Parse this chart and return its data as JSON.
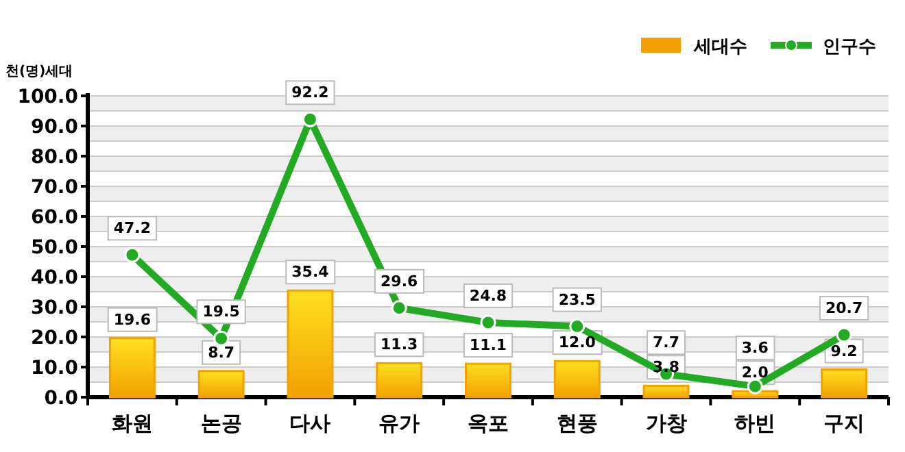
{
  "chart_data": {
    "type": "bar",
    "ylabel": "천(명)세대",
    "categories": [
      "화원",
      "논공",
      "다사",
      "유가",
      "옥포",
      "현풍",
      "가창",
      "하빈",
      "구지"
    ],
    "series": [
      {
        "name": "세대수",
        "color": "#f2a100",
        "values": [
          19.6,
          8.7,
          35.4,
          11.3,
          11.1,
          12.0,
          3.8,
          2.0,
          9.2
        ],
        "value_labels": [
          "19.6",
          "8.7",
          "35.4",
          "11.3",
          "11.1",
          "12.0",
          "3.8",
          "2.0",
          "9.2"
        ]
      },
      {
        "name": "인구수",
        "type": "line",
        "color": "#22aa22",
        "marker": "circle",
        "values": [
          47.2,
          19.5,
          92.2,
          29.6,
          24.8,
          23.5,
          7.7,
          3.6,
          20.7
        ],
        "value_labels": [
          "47.2",
          "19.5",
          "92.2",
          "29.6",
          "24.8",
          "23.5",
          "7.7",
          "3.6",
          "20.7"
        ]
      }
    ],
    "ylim": [
      0,
      100
    ],
    "yticks": [
      {
        "value": 0,
        "label": "0.0"
      },
      {
        "value": 5,
        "label": null
      },
      {
        "value": 10,
        "label": "10.0"
      },
      {
        "value": 15,
        "label": null
      },
      {
        "value": 20,
        "label": "20.0"
      },
      {
        "value": 25,
        "label": null
      },
      {
        "value": 30,
        "label": "30.0"
      },
      {
        "value": 35,
        "label": null
      },
      {
        "value": 40,
        "label": "40.0"
      },
      {
        "value": 45,
        "label": null
      },
      {
        "value": 50,
        "label": "50.0"
      },
      {
        "value": 55,
        "label": null
      },
      {
        "value": 60,
        "label": "60.0"
      },
      {
        "value": 65,
        "label": null
      },
      {
        "value": 70,
        "label": "70.0"
      },
      {
        "value": 75,
        "label": null
      },
      {
        "value": 80,
        "label": "80.0"
      },
      {
        "value": 85,
        "label": null
      },
      {
        "value": 90,
        "label": "90.0"
      },
      {
        "value": 95,
        "label": null
      },
      {
        "value": 100,
        "label": "100.0"
      }
    ],
    "grid": "y",
    "legend": "top right"
  }
}
